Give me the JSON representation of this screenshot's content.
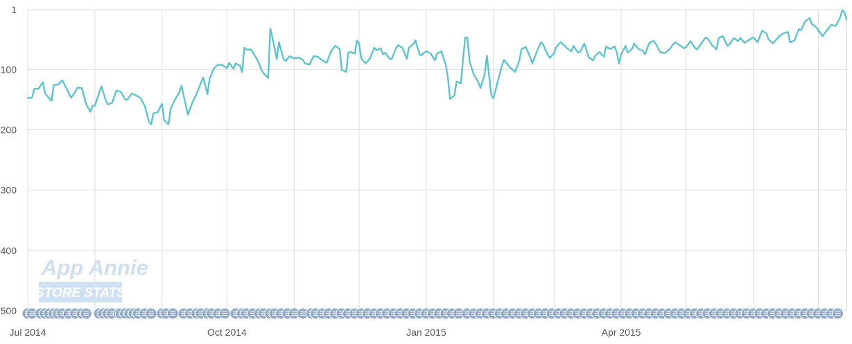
{
  "chart_data": {
    "type": "line",
    "title": "",
    "xlabel": "",
    "ylabel": "",
    "y_reversed": true,
    "ylim": [
      1,
      500
    ],
    "y_ticks": [
      1,
      100,
      200,
      300,
      400,
      500
    ],
    "x_ticks": [
      {
        "label": "Jul 2014",
        "date": "2014-07-01"
      },
      {
        "label": "Oct 2014",
        "date": "2014-10-01"
      },
      {
        "label": "Jan 2015",
        "date": "2015-01-01"
      },
      {
        "label": "Apr 2015",
        "date": "2015-04-01"
      }
    ],
    "xlim": [
      "2014-07-01",
      "2015-07-14"
    ],
    "grid": true,
    "legend": "none",
    "series": [
      {
        "color": "#5bc4d1",
        "points": [
          [
            "2014-07-01",
            147
          ],
          [
            "2014-07-03",
            147
          ],
          [
            "2014-07-04",
            132
          ],
          [
            "2014-07-06",
            132
          ],
          [
            "2014-07-08",
            121
          ],
          [
            "2014-07-09",
            140
          ],
          [
            "2014-07-12",
            152
          ],
          [
            "2014-07-13",
            126
          ],
          [
            "2014-07-15",
            125
          ],
          [
            "2014-07-17",
            118
          ],
          [
            "2014-07-19",
            132
          ],
          [
            "2014-07-21",
            147
          ],
          [
            "2014-07-22",
            142
          ],
          [
            "2014-07-24",
            130
          ],
          [
            "2014-07-26",
            131
          ],
          [
            "2014-07-28",
            158
          ],
          [
            "2014-07-30",
            170
          ],
          [
            "2014-07-31",
            160
          ],
          [
            "2014-08-01",
            160
          ],
          [
            "2014-08-04",
            128
          ],
          [
            "2014-08-06",
            151
          ],
          [
            "2014-08-07",
            158
          ],
          [
            "2014-08-09",
            155
          ],
          [
            "2014-08-11",
            135
          ],
          [
            "2014-08-13",
            137
          ],
          [
            "2014-08-15",
            150
          ],
          [
            "2014-08-16",
            150
          ],
          [
            "2014-08-18",
            140
          ],
          [
            "2014-08-20",
            143
          ],
          [
            "2014-08-22",
            147
          ],
          [
            "2014-08-24",
            160
          ],
          [
            "2014-08-26",
            187
          ],
          [
            "2014-08-27",
            191
          ],
          [
            "2014-08-28",
            173
          ],
          [
            "2014-08-30",
            171
          ],
          [
            "2014-09-01",
            157
          ],
          [
            "2014-09-02",
            184
          ],
          [
            "2014-09-04",
            191
          ],
          [
            "2014-09-05",
            165
          ],
          [
            "2014-09-07",
            150
          ],
          [
            "2014-09-09",
            138
          ],
          [
            "2014-09-10",
            127
          ],
          [
            "2014-09-12",
            160
          ],
          [
            "2014-09-13",
            175
          ],
          [
            "2014-09-15",
            155
          ],
          [
            "2014-09-17",
            140
          ],
          [
            "2014-09-19",
            122
          ],
          [
            "2014-09-20",
            113
          ],
          [
            "2014-09-22",
            141
          ],
          [
            "2014-09-23",
            115
          ],
          [
            "2014-09-25",
            98
          ],
          [
            "2014-09-27",
            92
          ],
          [
            "2014-09-29",
            93
          ],
          [
            "2014-10-01",
            98
          ],
          [
            "2014-10-02",
            89
          ],
          [
            "2014-10-04",
            99
          ],
          [
            "2014-10-05",
            90
          ],
          [
            "2014-10-07",
            94
          ],
          [
            "2014-10-08",
            104
          ],
          [
            "2014-10-09",
            64
          ],
          [
            "2014-10-10",
            67
          ],
          [
            "2014-10-12",
            67
          ],
          [
            "2014-10-13",
            72
          ],
          [
            "2014-10-15",
            84
          ],
          [
            "2014-10-17",
            101
          ],
          [
            "2014-10-18",
            107
          ],
          [
            "2014-10-20",
            114
          ],
          [
            "2014-10-21",
            32
          ],
          [
            "2014-10-22",
            48
          ],
          [
            "2014-10-24",
            83
          ],
          [
            "2014-10-25",
            55
          ],
          [
            "2014-10-27",
            82
          ],
          [
            "2014-10-28",
            86
          ],
          [
            "2014-10-30",
            78
          ],
          [
            "2014-11-01",
            82
          ],
          [
            "2014-11-03",
            80
          ],
          [
            "2014-11-05",
            84
          ],
          [
            "2014-11-06",
            90
          ],
          [
            "2014-11-08",
            92
          ],
          [
            "2014-11-10",
            78
          ],
          [
            "2014-11-12",
            79
          ],
          [
            "2014-11-14",
            85
          ],
          [
            "2014-11-16",
            89
          ],
          [
            "2014-11-18",
            70
          ],
          [
            "2014-11-20",
            61
          ],
          [
            "2014-11-22",
            66
          ],
          [
            "2014-11-23",
            101
          ],
          [
            "2014-11-25",
            104
          ],
          [
            "2014-11-26",
            72
          ],
          [
            "2014-11-27",
            71
          ],
          [
            "2014-11-29",
            74
          ],
          [
            "2014-11-30",
            52
          ],
          [
            "2014-12-01",
            57
          ],
          [
            "2014-12-02",
            82
          ],
          [
            "2014-12-04",
            90
          ],
          [
            "2014-12-06",
            82
          ],
          [
            "2014-12-08",
            64
          ],
          [
            "2014-12-09",
            68
          ],
          [
            "2014-12-11",
            65
          ],
          [
            "2014-12-12",
            75
          ],
          [
            "2014-12-13",
            72
          ],
          [
            "2014-12-15",
            82
          ],
          [
            "2014-12-16",
            83
          ],
          [
            "2014-12-18",
            65
          ],
          [
            "2014-12-19",
            60
          ],
          [
            "2014-12-21",
            64
          ],
          [
            "2014-12-23",
            82
          ],
          [
            "2014-12-24",
            64
          ],
          [
            "2014-12-26",
            58
          ],
          [
            "2014-12-27",
            52
          ],
          [
            "2014-12-29",
            76
          ],
          [
            "2014-12-30",
            76
          ],
          [
            "2014-12-31",
            72
          ],
          [
            "2015-01-01",
            70
          ],
          [
            "2015-01-03",
            73
          ],
          [
            "2015-01-05",
            85
          ],
          [
            "2015-01-06",
            74
          ],
          [
            "2015-01-08",
            70
          ],
          [
            "2015-01-10",
            92
          ],
          [
            "2015-01-11",
            114
          ],
          [
            "2015-01-12",
            149
          ],
          [
            "2015-01-14",
            143
          ],
          [
            "2015-01-15",
            120
          ],
          [
            "2015-01-17",
            123
          ],
          [
            "2015-01-18",
            82
          ],
          [
            "2015-01-19",
            47
          ],
          [
            "2015-01-20",
            47
          ],
          [
            "2015-01-21",
            87
          ],
          [
            "2015-01-23",
            109
          ],
          [
            "2015-01-25",
            121
          ],
          [
            "2015-01-26",
            131
          ],
          [
            "2015-01-28",
            108
          ],
          [
            "2015-01-29",
            77
          ],
          [
            "2015-01-31",
            142
          ],
          [
            "2015-02-01",
            148
          ],
          [
            "2015-02-03",
            120
          ],
          [
            "2015-02-05",
            93
          ],
          [
            "2015-02-06",
            84
          ],
          [
            "2015-02-08",
            94
          ],
          [
            "2015-02-09",
            98
          ],
          [
            "2015-02-11",
            104
          ],
          [
            "2015-02-13",
            85
          ],
          [
            "2015-02-14",
            66
          ],
          [
            "2015-02-16",
            63
          ],
          [
            "2015-02-18",
            80
          ],
          [
            "2015-02-19",
            90
          ],
          [
            "2015-02-21",
            71
          ],
          [
            "2015-02-23",
            55
          ],
          [
            "2015-02-24",
            59
          ],
          [
            "2015-02-26",
            75
          ],
          [
            "2015-02-27",
            81
          ],
          [
            "2015-03-01",
            73
          ],
          [
            "2015-03-02",
            63
          ],
          [
            "2015-03-04",
            55
          ],
          [
            "2015-03-06",
            61
          ],
          [
            "2015-03-07",
            65
          ],
          [
            "2015-03-09",
            70
          ],
          [
            "2015-03-10",
            61
          ],
          [
            "2015-03-12",
            72
          ],
          [
            "2015-03-13",
            71
          ],
          [
            "2015-03-15",
            57
          ],
          [
            "2015-03-17",
            80
          ],
          [
            "2015-03-19",
            85
          ],
          [
            "2015-03-20",
            77
          ],
          [
            "2015-03-22",
            71
          ],
          [
            "2015-03-24",
            79
          ],
          [
            "2015-03-25",
            62
          ],
          [
            "2015-03-27",
            66
          ],
          [
            "2015-03-29",
            62
          ],
          [
            "2015-03-30",
            72
          ],
          [
            "2015-03-31",
            90
          ],
          [
            "2015-04-01",
            75
          ],
          [
            "2015-04-03",
            61
          ],
          [
            "2015-04-04",
            72
          ],
          [
            "2015-04-06",
            66
          ],
          [
            "2015-04-07",
            57
          ],
          [
            "2015-04-09",
            66
          ],
          [
            "2015-04-11",
            69
          ],
          [
            "2015-04-12",
            75
          ],
          [
            "2015-04-14",
            56
          ],
          [
            "2015-04-16",
            52
          ],
          [
            "2015-04-17",
            58
          ],
          [
            "2015-04-19",
            71
          ],
          [
            "2015-04-21",
            73
          ],
          [
            "2015-04-23",
            68
          ],
          [
            "2015-04-25",
            58
          ],
          [
            "2015-04-26",
            55
          ],
          [
            "2015-04-28",
            60
          ],
          [
            "2015-04-30",
            65
          ],
          [
            "2015-05-01",
            63
          ],
          [
            "2015-05-03",
            53
          ],
          [
            "2015-05-05",
            64
          ],
          [
            "2015-05-06",
            67
          ],
          [
            "2015-05-08",
            57
          ],
          [
            "2015-05-10",
            47
          ],
          [
            "2015-05-11",
            49
          ],
          [
            "2015-05-13",
            60
          ],
          [
            "2015-05-15",
            67
          ],
          [
            "2015-05-16",
            48
          ],
          [
            "2015-05-18",
            45
          ],
          [
            "2015-05-20",
            61
          ],
          [
            "2015-05-21",
            58
          ],
          [
            "2015-05-23",
            48
          ],
          [
            "2015-05-25",
            53
          ],
          [
            "2015-05-26",
            48
          ],
          [
            "2015-05-28",
            56
          ],
          [
            "2015-05-30",
            51
          ],
          [
            "2015-06-01",
            47
          ],
          [
            "2015-06-03",
            55
          ],
          [
            "2015-06-05",
            36
          ],
          [
            "2015-06-07",
            40
          ],
          [
            "2015-06-08",
            50
          ],
          [
            "2015-06-10",
            57
          ],
          [
            "2015-06-11",
            53
          ],
          [
            "2015-06-13",
            45
          ],
          [
            "2015-06-15",
            40
          ],
          [
            "2015-06-17",
            38
          ],
          [
            "2015-06-18",
            55
          ],
          [
            "2015-06-20",
            52
          ],
          [
            "2015-06-22",
            33
          ],
          [
            "2015-06-23",
            35
          ],
          [
            "2015-06-25",
            20
          ],
          [
            "2015-06-27",
            15
          ],
          [
            "2015-06-28",
            25
          ],
          [
            "2015-06-30",
            30
          ],
          [
            "2015-07-02",
            40
          ],
          [
            "2015-07-03",
            45
          ],
          [
            "2015-07-05",
            35
          ],
          [
            "2015-07-07",
            26
          ],
          [
            "2015-07-09",
            28
          ],
          [
            "2015-07-11",
            15
          ],
          [
            "2015-07-12",
            2
          ],
          [
            "2015-07-13",
            5
          ],
          [
            "2015-07-14",
            17
          ]
        ]
      }
    ],
    "annotation_marker_dates": [
      "2014-07-01",
      "2014-07-03",
      "2014-07-07",
      "2014-07-09",
      "2014-07-11",
      "2014-07-13",
      "2014-07-15",
      "2014-07-17",
      "2014-07-20",
      "2014-07-23",
      "2014-07-26",
      "2014-07-28",
      "2014-08-03",
      "2014-08-05",
      "2014-08-07",
      "2014-08-09",
      "2014-08-12",
      "2014-08-13",
      "2014-08-15",
      "2014-08-17",
      "2014-08-19",
      "2014-08-21",
      "2014-08-24",
      "2014-08-27",
      "2014-09-01",
      "2014-09-03",
      "2014-09-06",
      "2014-09-11",
      "2014-09-14",
      "2014-09-17",
      "2014-09-19",
      "2014-09-22",
      "2014-09-24",
      "2014-09-27",
      "2014-09-30",
      "2014-10-05",
      "2014-10-08",
      "2014-10-10",
      "2014-10-13",
      "2014-10-16",
      "2014-10-18",
      "2014-10-21",
      "2014-10-23",
      "2014-10-26",
      "2014-10-29",
      "2014-11-01",
      "2014-11-05",
      "2014-11-09",
      "2014-11-11",
      "2014-11-14",
      "2014-11-17",
      "2014-11-20",
      "2014-11-23",
      "2014-11-26",
      "2014-11-29",
      "2014-12-02",
      "2014-12-05",
      "2014-12-08",
      "2014-12-11",
      "2014-12-14",
      "2014-12-17",
      "2014-12-20",
      "2014-12-23",
      "2014-12-26",
      "2014-12-29",
      "2015-01-01",
      "2015-01-04",
      "2015-01-07",
      "2015-01-10",
      "2015-01-13",
      "2015-01-16",
      "2015-01-20",
      "2015-01-23",
      "2015-01-26",
      "2015-01-29",
      "2015-02-01",
      "2015-02-04",
      "2015-02-07",
      "2015-02-10",
      "2015-02-13",
      "2015-02-16",
      "2015-02-19",
      "2015-02-22",
      "2015-02-25",
      "2015-02-28",
      "2015-03-03",
      "2015-03-06",
      "2015-03-09",
      "2015-03-12",
      "2015-03-15",
      "2015-03-18",
      "2015-03-21",
      "2015-03-24",
      "2015-03-27",
      "2015-03-30",
      "2015-04-02",
      "2015-04-05",
      "2015-04-08",
      "2015-04-11",
      "2015-04-14",
      "2015-04-17",
      "2015-04-20",
      "2015-04-23",
      "2015-04-26",
      "2015-04-29",
      "2015-05-02",
      "2015-05-05",
      "2015-05-08",
      "2015-05-11",
      "2015-05-14",
      "2015-05-17",
      "2015-05-20",
      "2015-05-23",
      "2015-05-26",
      "2015-05-29",
      "2015-06-01",
      "2015-06-04",
      "2015-06-07",
      "2015-06-10",
      "2015-06-13",
      "2015-06-16",
      "2015-06-19",
      "2015-06-22",
      "2015-06-25",
      "2015-06-28",
      "2015-07-01",
      "2015-07-04",
      "2015-07-07",
      "2015-07-10"
    ],
    "annotation_marker_color": "#8fa8c8"
  },
  "watermark": {
    "line1": "App Annie",
    "line2": "STORE STATS"
  }
}
